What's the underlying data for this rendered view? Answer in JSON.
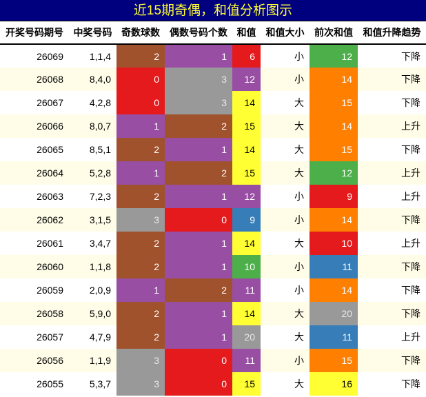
{
  "title": "近15期奇偶，和值分析图示",
  "headers": [
    "开奖号码期号",
    "中奖号码",
    "奇数球数",
    "偶数号码个数",
    "和值",
    "和值大小",
    "前次和值",
    "和值升降趋势"
  ],
  "colors": {
    "brown": "#a0522d",
    "purple": "#984ea3",
    "red": "#e41a1c",
    "gray": "#999999",
    "yellow": "#ffff33",
    "blue": "#377eb8",
    "green": "#4daf4a",
    "orange": "#ff7f00",
    "title_bg": "#00007f",
    "title_fg": "#ffff33"
  },
  "rows": [
    {
      "period": "26069",
      "numbers": "1,1,4",
      "odd": "2",
      "even": "1",
      "sum": "6",
      "size": "小",
      "prev_sum": "12",
      "trend": "下降",
      "odd_color": "brown",
      "even_color": "purple",
      "sum_color": "red",
      "prev_color": "green"
    },
    {
      "period": "26068",
      "numbers": "8,4,0",
      "odd": "0",
      "even": "3",
      "sum": "12",
      "size": "小",
      "prev_sum": "14",
      "trend": "下降",
      "odd_color": "red",
      "even_color": "gray",
      "sum_color": "purple",
      "prev_color": "orange"
    },
    {
      "period": "26067",
      "numbers": "4,2,8",
      "odd": "0",
      "even": "3",
      "sum": "14",
      "size": "大",
      "prev_sum": "15",
      "trend": "下降",
      "odd_color": "red",
      "even_color": "gray",
      "sum_color": "yellow",
      "prev_color": "orange"
    },
    {
      "period": "26066",
      "numbers": "8,0,7",
      "odd": "1",
      "even": "2",
      "sum": "15",
      "size": "大",
      "prev_sum": "14",
      "trend": "上升",
      "odd_color": "purple",
      "even_color": "brown",
      "sum_color": "yellow",
      "prev_color": "orange"
    },
    {
      "period": "26065",
      "numbers": "8,5,1",
      "odd": "2",
      "even": "1",
      "sum": "14",
      "size": "大",
      "prev_sum": "15",
      "trend": "下降",
      "odd_color": "brown",
      "even_color": "purple",
      "sum_color": "yellow",
      "prev_color": "orange"
    },
    {
      "period": "26064",
      "numbers": "5,2,8",
      "odd": "1",
      "even": "2",
      "sum": "15",
      "size": "大",
      "prev_sum": "12",
      "trend": "上升",
      "odd_color": "purple",
      "even_color": "brown",
      "sum_color": "yellow",
      "prev_color": "green"
    },
    {
      "period": "26063",
      "numbers": "7,2,3",
      "odd": "2",
      "even": "1",
      "sum": "12",
      "size": "小",
      "prev_sum": "9",
      "trend": "上升",
      "odd_color": "brown",
      "even_color": "purple",
      "sum_color": "purple",
      "prev_color": "red"
    },
    {
      "period": "26062",
      "numbers": "3,1,5",
      "odd": "3",
      "even": "0",
      "sum": "9",
      "size": "小",
      "prev_sum": "14",
      "trend": "下降",
      "odd_color": "gray",
      "even_color": "red",
      "sum_color": "blue",
      "prev_color": "orange"
    },
    {
      "period": "26061",
      "numbers": "3,4,7",
      "odd": "2",
      "even": "1",
      "sum": "14",
      "size": "大",
      "prev_sum": "10",
      "trend": "上升",
      "odd_color": "brown",
      "even_color": "purple",
      "sum_color": "yellow",
      "prev_color": "red"
    },
    {
      "period": "26060",
      "numbers": "1,1,8",
      "odd": "2",
      "even": "1",
      "sum": "10",
      "size": "小",
      "prev_sum": "11",
      "trend": "下降",
      "odd_color": "brown",
      "even_color": "purple",
      "sum_color": "green",
      "prev_color": "blue"
    },
    {
      "period": "26059",
      "numbers": "2,0,9",
      "odd": "1",
      "even": "2",
      "sum": "11",
      "size": "小",
      "prev_sum": "14",
      "trend": "下降",
      "odd_color": "purple",
      "even_color": "brown",
      "sum_color": "purple",
      "prev_color": "orange"
    },
    {
      "period": "26058",
      "numbers": "5,9,0",
      "odd": "2",
      "even": "1",
      "sum": "14",
      "size": "大",
      "prev_sum": "20",
      "trend": "下降",
      "odd_color": "brown",
      "even_color": "purple",
      "sum_color": "yellow",
      "prev_color": "gray"
    },
    {
      "period": "26057",
      "numbers": "4,7,9",
      "odd": "2",
      "even": "1",
      "sum": "20",
      "size": "大",
      "prev_sum": "11",
      "trend": "上升",
      "odd_color": "brown",
      "even_color": "purple",
      "sum_color": "gray",
      "prev_color": "blue"
    },
    {
      "period": "26056",
      "numbers": "1,1,9",
      "odd": "3",
      "even": "0",
      "sum": "11",
      "size": "小",
      "prev_sum": "15",
      "trend": "下降",
      "odd_color": "gray",
      "even_color": "red",
      "sum_color": "purple",
      "prev_color": "orange"
    },
    {
      "period": "26055",
      "numbers": "5,3,7",
      "odd": "3",
      "even": "0",
      "sum": "15",
      "size": "大",
      "prev_sum": "16",
      "trend": "下降",
      "odd_color": "gray",
      "even_color": "red",
      "sum_color": "yellow",
      "prev_color": "yellow"
    }
  ]
}
